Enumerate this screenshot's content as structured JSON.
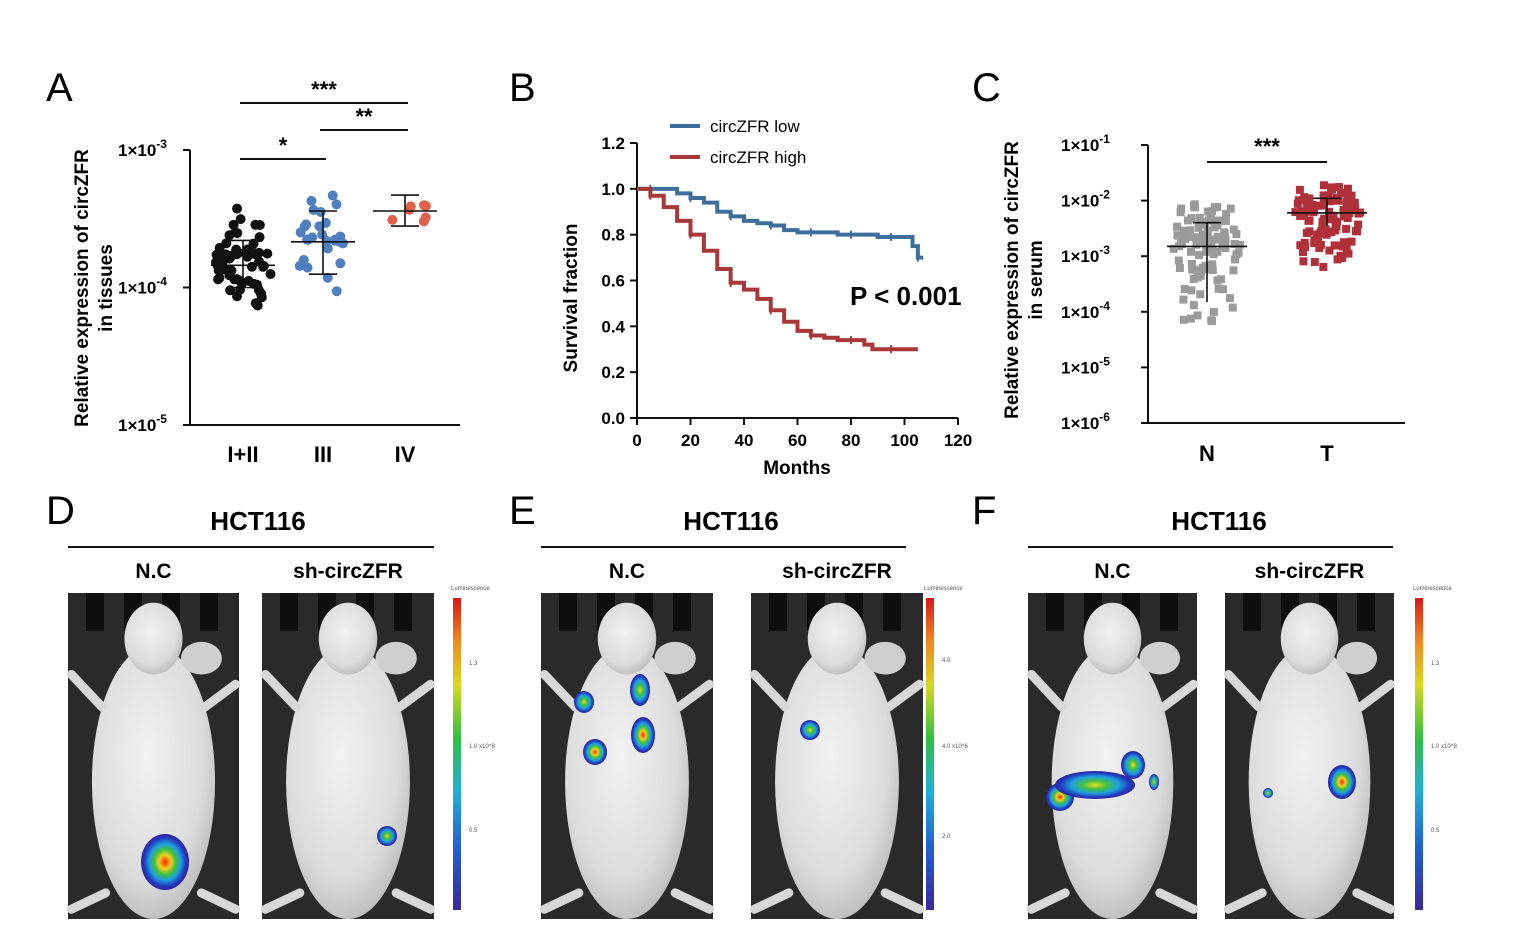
{
  "panels": {
    "A": {
      "label": "A",
      "chart_data": {
        "type": "scatter",
        "ylabel_line1": "Relative expression of circZFR",
        "ylabel_line2": "in tissues",
        "yscale": "log",
        "ylim": [
          1e-05,
          0.001
        ],
        "yticks": [
          {
            "value": 0.001,
            "base": "1×10",
            "exp": "-3"
          },
          {
            "value": 0.0001,
            "base": "1×10",
            "exp": "-4"
          },
          {
            "value": 1e-05,
            "base": "1×10",
            "exp": "-5"
          }
        ],
        "categories": [
          "I+II",
          "III",
          "IV"
        ],
        "colors": [
          "#111111",
          "#4f7fc0",
          "#e0604a"
        ],
        "groups": [
          {
            "name": "I+II",
            "count": 58,
            "median": 0.000145,
            "lo": 5.5e-05,
            "hi": 0.00043,
            "mean": 0.000145,
            "sd_lo": 0.0001,
            "sd_hi": 0.00022
          },
          {
            "name": "III",
            "count": 28,
            "median": 0.000215,
            "lo": 8e-05,
            "hi": 0.00059,
            "mean": 0.000215,
            "sd_lo": 0.000125,
            "sd_hi": 0.00036
          },
          {
            "name": "IV",
            "count": 7,
            "median": 0.00036,
            "lo": 0.0002,
            "hi": 0.00048,
            "mean": 0.00036,
            "sd_lo": 0.00028,
            "sd_hi": 0.00047
          }
        ],
        "significance": [
          {
            "from": "I+II",
            "to": "IV",
            "label": "***"
          },
          {
            "from": "III",
            "to": "IV",
            "label": "**"
          },
          {
            "from": "I+II",
            "to": "III",
            "label": "*"
          }
        ]
      }
    },
    "B": {
      "label": "B",
      "chart_data": {
        "type": "line",
        "xlabel": "Months",
        "ylabel": "Survival fraction",
        "xlim": [
          0,
          120
        ],
        "ylim": [
          0,
          1.2
        ],
        "xticks": [
          "0",
          "20",
          "40",
          "60",
          "80",
          "100",
          "120"
        ],
        "yticks": [
          "0.0",
          "0.2",
          "0.4",
          "0.6",
          "0.8",
          "1.0",
          "1.2"
        ],
        "annotation": "P < 0.001",
        "series": [
          {
            "name": "circZFR low",
            "color": "#3e6f9c",
            "x": [
              0,
              5,
              10,
              15,
              20,
              25,
              30,
              35,
              40,
              45,
              50,
              55,
              60,
              65,
              70,
              75,
              80,
              85,
              90,
              95,
              100,
              103,
              105,
              107
            ],
            "y": [
              1.0,
              1.0,
              1.0,
              0.98,
              0.96,
              0.94,
              0.9,
              0.88,
              0.86,
              0.85,
              0.84,
              0.82,
              0.81,
              0.81,
              0.81,
              0.8,
              0.8,
              0.8,
              0.79,
              0.79,
              0.79,
              0.75,
              0.7,
              0.7
            ]
          },
          {
            "name": "circZFR high",
            "color": "#a83838",
            "x": [
              0,
              5,
              10,
              15,
              20,
              25,
              30,
              35,
              40,
              45,
              50,
              55,
              60,
              65,
              70,
              75,
              80,
              85,
              88,
              95,
              100,
              105
            ],
            "y": [
              1.0,
              0.97,
              0.92,
              0.86,
              0.8,
              0.73,
              0.65,
              0.59,
              0.56,
              0.52,
              0.47,
              0.42,
              0.38,
              0.36,
              0.35,
              0.34,
              0.34,
              0.32,
              0.3,
              0.3,
              0.3,
              0.3
            ]
          }
        ]
      }
    },
    "C": {
      "label": "C",
      "chart_data": {
        "type": "scatter",
        "ylabel_line1": "Relative expression of circZFR",
        "ylabel_line2": "in serum",
        "yscale": "log",
        "ylim": [
          1e-06,
          0.1
        ],
        "yticks": [
          {
            "value": 0.1,
            "base": "1×10",
            "exp": "-1"
          },
          {
            "value": 0.01,
            "base": "1×10",
            "exp": "-2"
          },
          {
            "value": 0.001,
            "base": "1×10",
            "exp": "-3"
          },
          {
            "value": 0.0001,
            "base": "1×10",
            "exp": "-4"
          },
          {
            "value": 1e-05,
            "base": "1×10",
            "exp": "-5"
          },
          {
            "value": 1e-06,
            "base": "1×10",
            "exp": "-6"
          }
        ],
        "categories": [
          "N",
          "T"
        ],
        "colors": [
          "#9a9a9a",
          "#b0303a"
        ],
        "groups": [
          {
            "name": "N",
            "count": 110,
            "mean": 0.0015,
            "sd_lo": 0.00015,
            "sd_hi": 0.004,
            "lo": 4e-05,
            "hi": 0.012
          },
          {
            "name": "T",
            "count": 110,
            "mean": 0.006,
            "sd_lo": 0.0035,
            "sd_hi": 0.011,
            "lo": 0.0005,
            "hi": 0.025
          }
        ],
        "significance": [
          {
            "from": "N",
            "to": "T",
            "label": "***"
          }
        ]
      }
    },
    "D": {
      "label": "D",
      "cell_line": "HCT116",
      "groups": [
        "N.C",
        "sh-circZFR"
      ],
      "colorbar_title": "Luminescence",
      "colorbar_ticks": [
        "1.3",
        "1.0",
        "0.5"
      ],
      "colorbar_unit": "x10^8"
    },
    "E": {
      "label": "E",
      "cell_line": "HCT116",
      "groups": [
        "N.C",
        "sh-circZFR"
      ],
      "colorbar_title": "Luminescence",
      "colorbar_ticks": [
        "4.0",
        "4.0",
        "2.0"
      ],
      "colorbar_unit": "x10^6"
    },
    "F": {
      "label": "F",
      "cell_line": "HCT116",
      "groups": [
        "N.C",
        "sh-circZFR"
      ],
      "colorbar_title": "Luminescence",
      "colorbar_ticks": [
        "1.3",
        "1.0",
        "0.5"
      ],
      "colorbar_unit": "x10^8"
    }
  }
}
